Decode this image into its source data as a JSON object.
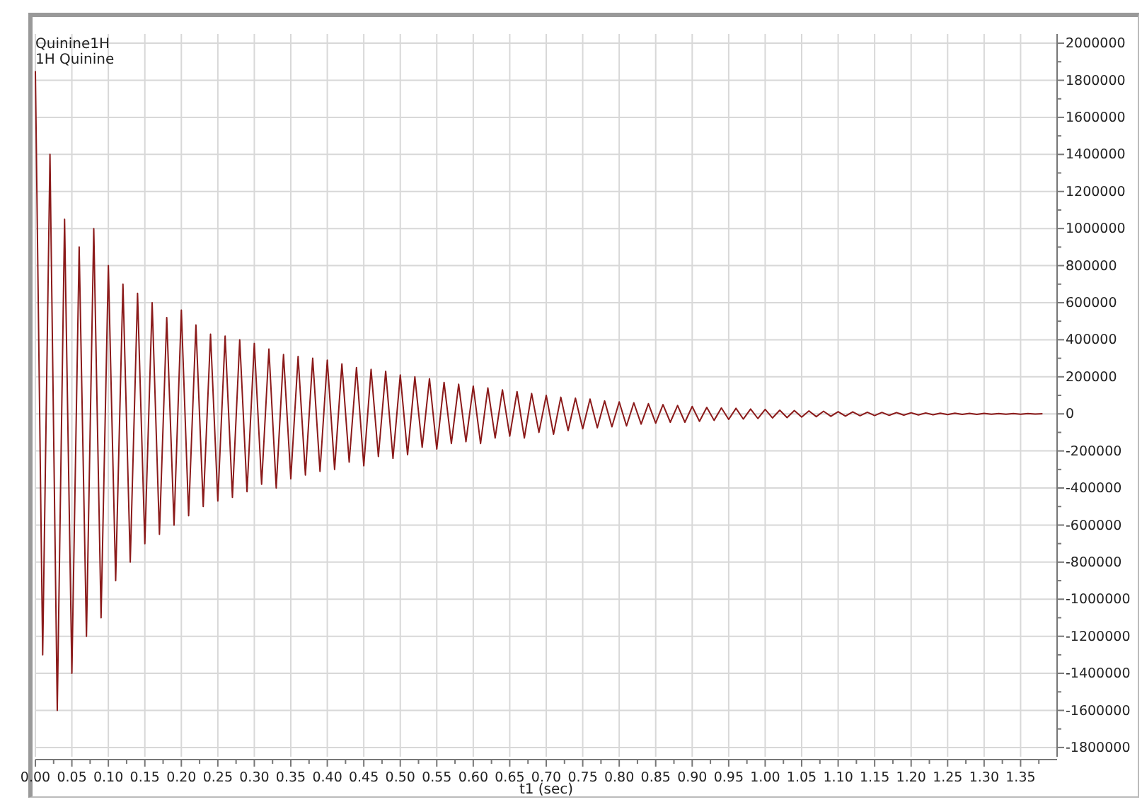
{
  "chart_data": {
    "type": "line",
    "title": "Quinine1H",
    "subtitle": "1H Quinine",
    "xlabel": "t1 (sec)",
    "xlim": [
      0,
      1.4
    ],
    "xticks": [
      {
        "value": 0,
        "label": "0.00"
      },
      {
        "value": 0.025,
        "label": null
      },
      {
        "value": 0.05,
        "label": "0.05"
      },
      {
        "value": 0.075,
        "label": null
      },
      {
        "value": 0.1,
        "label": "0.10"
      },
      {
        "value": 0.125,
        "label": null
      },
      {
        "value": 0.15,
        "label": "0.15"
      },
      {
        "value": 0.175,
        "label": null
      },
      {
        "value": 0.2,
        "label": "0.20"
      },
      {
        "value": 0.225,
        "label": null
      },
      {
        "value": 0.25,
        "label": "0.25"
      },
      {
        "value": 0.275,
        "label": null
      },
      {
        "value": 0.3,
        "label": "0.30"
      },
      {
        "value": 0.325,
        "label": null
      },
      {
        "value": 0.35,
        "label": "0.35"
      },
      {
        "value": 0.375,
        "label": null
      },
      {
        "value": 0.4,
        "label": "0.40"
      },
      {
        "value": 0.425,
        "label": null
      },
      {
        "value": 0.45,
        "label": "0.45"
      },
      {
        "value": 0.475,
        "label": null
      },
      {
        "value": 0.5,
        "label": "0.50"
      },
      {
        "value": 0.525,
        "label": null
      },
      {
        "value": 0.55,
        "label": "0.55"
      },
      {
        "value": 0.575,
        "label": null
      },
      {
        "value": 0.6,
        "label": "0.60"
      },
      {
        "value": 0.625,
        "label": null
      },
      {
        "value": 0.65,
        "label": "0.65"
      },
      {
        "value": 0.675,
        "label": null
      },
      {
        "value": 0.7,
        "label": "0.70"
      },
      {
        "value": 0.725,
        "label": null
      },
      {
        "value": 0.75,
        "label": "0.75"
      },
      {
        "value": 0.775,
        "label": null
      },
      {
        "value": 0.8,
        "label": "0.80"
      },
      {
        "value": 0.825,
        "label": null
      },
      {
        "value": 0.85,
        "label": "0.85"
      },
      {
        "value": 0.875,
        "label": null
      },
      {
        "value": 0.9,
        "label": "0.90"
      },
      {
        "value": 0.925,
        "label": null
      },
      {
        "value": 0.95,
        "label": "0.95"
      },
      {
        "value": 0.975,
        "label": null
      },
      {
        "value": 1,
        "label": "1.00"
      },
      {
        "value": 1.025,
        "label": null
      },
      {
        "value": 1.05,
        "label": "1.05"
      },
      {
        "value": 1.075,
        "label": null
      },
      {
        "value": 1.1,
        "label": "1.10"
      },
      {
        "value": 1.125,
        "label": null
      },
      {
        "value": 1.15,
        "label": "1.15"
      },
      {
        "value": 1.175,
        "label": null
      },
      {
        "value": 1.2,
        "label": "1.20"
      },
      {
        "value": 1.225,
        "label": null
      },
      {
        "value": 1.25,
        "label": "1.25"
      },
      {
        "value": 1.275,
        "label": null
      },
      {
        "value": 1.3,
        "label": "1.30"
      },
      {
        "value": 1.325,
        "label": null
      },
      {
        "value": 1.35,
        "label": "1.35"
      },
      {
        "value": 1.375,
        "label": null
      }
    ],
    "ylim": [
      -1850000,
      2050000
    ],
    "yticks": [
      2000000,
      {
        "value": 1900000,
        "label": null
      },
      1800000,
      {
        "value": 1700000,
        "label": null
      },
      1600000,
      {
        "value": 1500000,
        "label": null
      },
      1400000,
      {
        "value": 1300000,
        "label": null
      },
      1200000,
      {
        "value": 1100000,
        "label": null
      },
      1000000,
      {
        "value": 900000,
        "label": null
      },
      800000,
      {
        "value": 700000,
        "label": null
      },
      600000,
      {
        "value": 500000,
        "label": null
      },
      400000,
      {
        "value": 300000,
        "label": null
      },
      200000,
      {
        "value": 100000,
        "label": null
      },
      0,
      {
        "value": -100000,
        "label": null
      },
      -200000,
      {
        "value": -300000,
        "label": null
      },
      -400000,
      {
        "value": -500000,
        "label": null
      },
      -600000,
      {
        "value": -700000,
        "label": null
      },
      -800000,
      {
        "value": -900000,
        "label": null
      },
      -1000000,
      {
        "value": -1100000,
        "label": null
      },
      -1200000,
      {
        "value": -1300000,
        "label": null
      },
      -1400000,
      {
        "value": -1500000,
        "label": null
      },
      -1600000,
      {
        "value": -1700000,
        "label": null
      },
      -1800000
    ],
    "grid": true,
    "series": [
      {
        "color": "#8b1a1a",
        "x": [
          0,
          0.01,
          0.02,
          0.03,
          0.04,
          0.05,
          0.06,
          0.07,
          0.08,
          0.09,
          0.1,
          0.11,
          0.12,
          0.13,
          0.14,
          0.15,
          0.16,
          0.17,
          0.18,
          0.19,
          0.2,
          0.21,
          0.22,
          0.23,
          0.24,
          0.25,
          0.26,
          0.27,
          0.28,
          0.29,
          0.3,
          0.31,
          0.32,
          0.33,
          0.34,
          0.35,
          0.36,
          0.37,
          0.38,
          0.39,
          0.4,
          0.41,
          0.42,
          0.43,
          0.44,
          0.45,
          0.46,
          0.47,
          0.48,
          0.49,
          0.5,
          0.51,
          0.52,
          0.53,
          0.54,
          0.55,
          0.56,
          0.57,
          0.58,
          0.59,
          0.6,
          0.61,
          0.62,
          0.63,
          0.64,
          0.65,
          0.66,
          0.67,
          0.68,
          0.69,
          0.7,
          0.71,
          0.72,
          0.73,
          0.74,
          0.75,
          0.76,
          0.77,
          0.78,
          0.79,
          0.8,
          0.81,
          0.82,
          0.83,
          0.84,
          0.85,
          0.86,
          0.87,
          0.88,
          0.89,
          0.9,
          0.91,
          0.92,
          0.93,
          0.94,
          0.95,
          0.96,
          0.97,
          0.98,
          0.99,
          1,
          1.01,
          1.02,
          1.03,
          1.04,
          1.05,
          1.06,
          1.07,
          1.08,
          1.09,
          1.1,
          1.11,
          1.12,
          1.13,
          1.14,
          1.15,
          1.16,
          1.17,
          1.18,
          1.19,
          1.2,
          1.21,
          1.22,
          1.23,
          1.24,
          1.25,
          1.26,
          1.27,
          1.28,
          1.29,
          1.3,
          1.31,
          1.32,
          1.33,
          1.34,
          1.35,
          1.36,
          1.37,
          1.38
        ],
        "values": [
          1850000,
          -1300000,
          1400000,
          -1600000,
          1050000,
          -1400000,
          900000,
          -1200000,
          1000000,
          -1100000,
          800000,
          -900000,
          700000,
          -800000,
          650000,
          -700000,
          600000,
          -650000,
          520000,
          -600000,
          560000,
          -550000,
          480000,
          -500000,
          430000,
          -470000,
          420000,
          -450000,
          400000,
          -420000,
          380000,
          -380000,
          350000,
          -400000,
          320000,
          -350000,
          310000,
          -330000,
          300000,
          -310000,
          290000,
          -300000,
          270000,
          -260000,
          250000,
          -280000,
          240000,
          -230000,
          230000,
          -240000,
          210000,
          -220000,
          200000,
          -180000,
          190000,
          -190000,
          170000,
          -160000,
          160000,
          -150000,
          150000,
          -160000,
          140000,
          -130000,
          130000,
          -120000,
          120000,
          -130000,
          110000,
          -100000,
          100000,
          -110000,
          90000,
          -90000,
          85000,
          -80000,
          80000,
          -75000,
          70000,
          -70000,
          65000,
          -65000,
          60000,
          -55000,
          55000,
          -50000,
          50000,
          -45000,
          45000,
          -45000,
          40000,
          -40000,
          35000,
          -35000,
          32000,
          -30000,
          30000,
          -28000,
          26000,
          -25000,
          24000,
          -22000,
          20000,
          -20000,
          18000,
          -17000,
          16000,
          -15000,
          14000,
          -13000,
          12000,
          -12000,
          11000,
          -10000,
          9000,
          -9000,
          8000,
          -8000,
          7000,
          -7000,
          6000,
          -6000,
          5000,
          -5000,
          4000,
          -4000,
          4000,
          -3000,
          3000,
          -3000,
          3000,
          -2000,
          2000,
          -2000,
          2000,
          -2000,
          2000,
          -1000,
          1000
        ]
      }
    ]
  }
}
